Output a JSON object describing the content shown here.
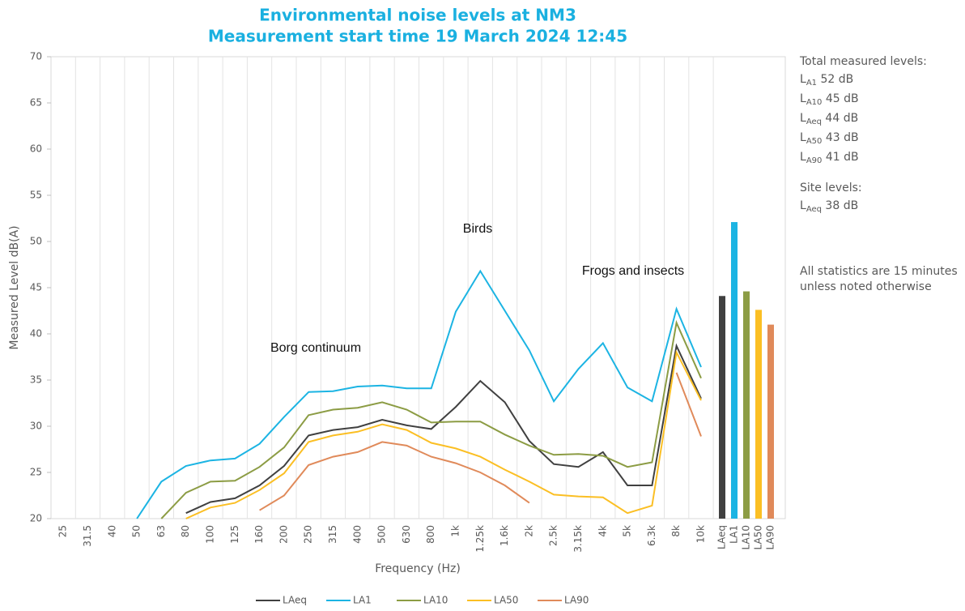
{
  "chart_data": [
    {
      "type": "line",
      "title": "Environmental noise levels at NM3",
      "subtitle": "Measurement start time 19 March 2024 12:45",
      "x_label": "Frequency (Hz)",
      "y_label": "Measured Level dB(A)",
      "categories": [
        "25",
        "31.5",
        "40",
        "50",
        "63",
        "80",
        "100",
        "125",
        "160",
        "200",
        "250",
        "315",
        "400",
        "500",
        "630",
        "800",
        "1k",
        "1.25k",
        "1.6k",
        "2k",
        "2.5k",
        "3.15k",
        "4k",
        "5k",
        "6.3k",
        "8k",
        "10k"
      ],
      "ylim": [
        20,
        70
      ],
      "yticks": [
        20,
        25,
        30,
        35,
        40,
        45,
        50,
        55,
        60,
        65,
        70
      ],
      "grid": true,
      "series": [
        {
          "name": "LAeq",
          "color": "#404040",
          "values": [
            null,
            null,
            null,
            null,
            null,
            20.6,
            21.8,
            22.2,
            23.6,
            25.7,
            29.0,
            29.6,
            29.9,
            30.7,
            30.1,
            29.7,
            32.1,
            34.9,
            32.6,
            28.4,
            25.9,
            25.6,
            27.2,
            23.6,
            23.6,
            38.7,
            33.0
          ]
        },
        {
          "name": "LA1",
          "color": "#1cb4e3",
          "values": [
            null,
            null,
            null,
            20.0,
            24.0,
            25.7,
            26.3,
            26.5,
            28.1,
            31.0,
            33.7,
            33.8,
            34.3,
            34.4,
            34.1,
            34.1,
            42.4,
            46.8,
            42.5,
            38.2,
            32.7,
            36.2,
            39.0,
            34.2,
            32.7,
            42.7,
            36.4
          ]
        },
        {
          "name": "LA10",
          "color": "#8c9c44",
          "values": [
            null,
            null,
            null,
            null,
            20.0,
            22.8,
            24.0,
            24.1,
            25.6,
            27.7,
            31.2,
            31.8,
            32.0,
            32.6,
            31.8,
            30.4,
            30.5,
            30.5,
            29.1,
            27.9,
            26.9,
            27.0,
            26.8,
            25.6,
            26.1,
            41.2,
            35.2
          ]
        },
        {
          "name": "LA50",
          "color": "#fbbf24",
          "values": [
            null,
            null,
            null,
            null,
            null,
            20.0,
            21.2,
            21.7,
            23.1,
            24.9,
            28.3,
            29.0,
            29.4,
            30.2,
            29.6,
            28.2,
            27.6,
            26.7,
            25.3,
            24.0,
            22.6,
            22.4,
            22.3,
            20.6,
            21.4,
            38.0,
            32.8
          ]
        },
        {
          "name": "LA90",
          "color": "#e08a5a",
          "values": [
            null,
            null,
            null,
            null,
            null,
            null,
            null,
            null,
            20.9,
            22.5,
            25.8,
            26.7,
            27.2,
            28.3,
            27.9,
            26.7,
            26.0,
            25.0,
            23.6,
            21.7,
            null,
            null,
            null,
            null,
            null,
            35.8,
            28.9
          ]
        }
      ],
      "annotations": [
        "Birds",
        "Frogs and insects",
        "Borg continuum"
      ]
    },
    {
      "type": "bar",
      "categories": [
        "LAeq",
        "LA1",
        "LA10",
        "LA50",
        "LA90"
      ],
      "values": [
        44.1,
        52.1,
        44.6,
        42.6,
        41.0
      ],
      "colors": [
        "#404040",
        "#1cb4e3",
        "#8c9c44",
        "#fbbf24",
        "#e08a5a"
      ],
      "ylim": [
        20,
        70
      ]
    }
  ],
  "side_notes": [
    {
      "heading": "Total measured levels:",
      "items": [
        {
          "symbol": "L",
          "subscript": "A1",
          "text": "52 dB"
        },
        {
          "symbol": "L",
          "subscript": "A10",
          "text": "45 dB"
        },
        {
          "symbol": "L",
          "subscript": "Aeq",
          "text": "44 dB"
        },
        {
          "symbol": "L",
          "subscript": "A50",
          "text": "43 dB"
        },
        {
          "symbol": "L",
          "subscript": "A90",
          "text": "41 dB"
        }
      ]
    },
    {
      "heading": "Site levels:",
      "items": [
        {
          "symbol": "L",
          "subscript": "Aeq",
          "text": "38 dB"
        }
      ]
    },
    {
      "lines": [
        "All statistics are 15 minutes",
        "unless noted otherwise"
      ]
    }
  ]
}
